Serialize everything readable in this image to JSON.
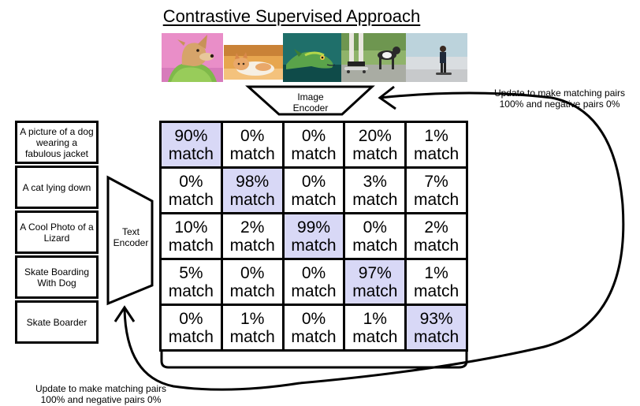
{
  "title": "Contrastive Supervised Approach",
  "image_encoder": [
    "Image",
    "Encoder"
  ],
  "text_encoder": [
    "Text",
    "Encoder"
  ],
  "captions": [
    "A picture of a dog wearing a fabulous jacket",
    "A cat lying down",
    "A Cool Photo of a Lizard",
    "Skate Boarding With Dog",
    "Skate Boarder"
  ],
  "match_word": "match",
  "matrix": [
    [
      "90%",
      "0%",
      "0%",
      "20%",
      "1%"
    ],
    [
      "0%",
      "98%",
      "0%",
      "3%",
      "7%"
    ],
    [
      "10%",
      "2%",
      "99%",
      "0%",
      "2%"
    ],
    [
      "5%",
      "0%",
      "0%",
      "97%",
      "1%"
    ],
    [
      "0%",
      "1%",
      "0%",
      "1%",
      "93%"
    ]
  ],
  "update_note_top": [
    "Update to make matching pairs",
    "100% and negative pairs 0%"
  ],
  "update_note_bottom": [
    "Update to make matching pairs",
    "100% and negative pairs 0%"
  ],
  "colors": {
    "matching_pair_fill": "#d8d8f6",
    "border": "#000000"
  },
  "images": [
    {
      "name": "dog-in-jacket-photo"
    },
    {
      "name": "cat-lying-photo"
    },
    {
      "name": "lizard-photo"
    },
    {
      "name": "skateboarding-with-dog-photo"
    },
    {
      "name": "skateboarder-photo"
    }
  ]
}
